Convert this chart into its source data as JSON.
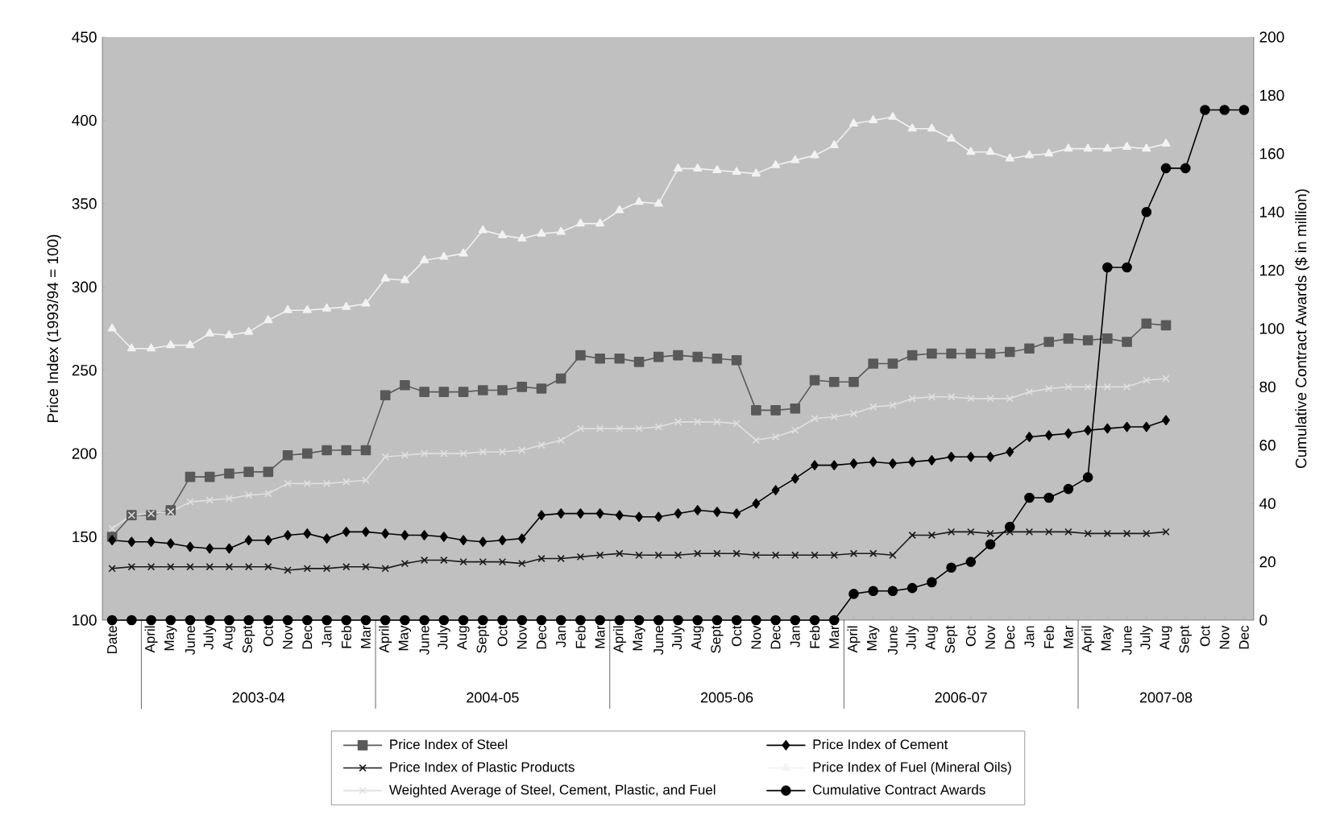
{
  "chart_data": {
    "type": "line",
    "ylabel": "Price Index (1993/94 = 100)",
    "y2label": "Cumulative Contract Awards ($ in million)",
    "categories": [
      "Date",
      null,
      "April",
      "May",
      "June",
      "July",
      "Aug",
      "Sept",
      "Oct",
      "Nov",
      "Dec",
      "Jan",
      "Feb",
      "Mar",
      "April",
      "May",
      "June",
      "July",
      "Aug",
      "Sept",
      "Oct",
      "Nov",
      "Dec",
      "Jan",
      "Feb",
      "Mar",
      "April",
      "May",
      "June",
      "July",
      "Aug",
      "Sept",
      "Oct",
      "Nov",
      "Dec",
      "Jan",
      "Feb",
      "Mar",
      "April",
      "May",
      "June",
      "July",
      "Aug",
      "Sept",
      "Oct",
      "Nov",
      "Dec",
      "Jan",
      "Feb",
      "Mar",
      "April",
      "May",
      "June",
      "July",
      "Aug",
      "Sept",
      "Oct",
      "Nov",
      "Dec"
    ],
    "series": [
      {
        "name": "Price Index of Steel",
        "color": "#595959",
        "marker": "square",
        "values": [
          150,
          163,
          163,
          166,
          186,
          186,
          188,
          189,
          189,
          199,
          200,
          202,
          202,
          202,
          235,
          241,
          237,
          237,
          237,
          238,
          238,
          240,
          239,
          245,
          259,
          257,
          257,
          255,
          258,
          259,
          258,
          257,
          256,
          226,
          226,
          227,
          244,
          243,
          243,
          254,
          254,
          259,
          260,
          260,
          260,
          260,
          261,
          263,
          267,
          269,
          268,
          269,
          267,
          278,
          277,
          null,
          null,
          null,
          null
        ]
      },
      {
        "name": "Price Index of Cement",
        "color": "#000000",
        "marker": "diamond",
        "values": [
          148,
          147,
          147,
          146,
          144,
          143,
          143,
          148,
          148,
          151,
          152,
          149,
          153,
          153,
          152,
          151,
          151,
          150,
          148,
          147,
          148,
          149,
          163,
          164,
          164,
          164,
          163,
          162,
          162,
          164,
          166,
          165,
          164,
          170,
          178,
          185,
          193,
          193,
          194,
          195,
          194,
          195,
          196,
          198,
          198,
          198,
          201,
          210,
          211,
          212,
          214,
          215,
          216,
          216,
          220,
          null,
          null,
          null,
          null
        ]
      },
      {
        "name": "Price Index of Plastic Products",
        "color": "#1a1a1a",
        "marker": "cross",
        "values": [
          131,
          132,
          132,
          132,
          132,
          132,
          132,
          132,
          132,
          130,
          131,
          131,
          132,
          132,
          131,
          134,
          136,
          136,
          135,
          135,
          135,
          134,
          137,
          137,
          138,
          139,
          140,
          139,
          139,
          139,
          140,
          140,
          140,
          139,
          139,
          139,
          139,
          139,
          140,
          140,
          139,
          151,
          151,
          153,
          153,
          152,
          153,
          153,
          153,
          153,
          152,
          152,
          152,
          152,
          153,
          null,
          null,
          null,
          null
        ]
      },
      {
        "name": "Price Index of Fuel (Mineral Oils)",
        "color": "#f2f2f2",
        "marker": "triangle",
        "values": [
          275,
          263,
          263,
          265,
          265,
          272,
          271,
          273,
          280,
          286,
          286,
          287,
          288,
          290,
          305,
          304,
          316,
          318,
          320,
          334,
          331,
          329,
          332,
          333,
          338,
          338,
          346,
          351,
          350,
          371,
          371,
          370,
          369,
          368,
          373,
          376,
          379,
          385,
          398,
          400,
          402,
          395,
          395,
          389,
          381,
          381,
          377,
          379,
          380,
          383,
          383,
          383,
          384,
          383,
          386,
          null,
          null,
          null,
          null
        ]
      },
      {
        "name": "Weighted Average of Steel, Cement, Plastic, and Fuel",
        "color": "#e0e0e0",
        "marker": "cross",
        "values": [
          155,
          163,
          164,
          165,
          171,
          172,
          173,
          175,
          176,
          182,
          182,
          182,
          183,
          184,
          198,
          199,
          200,
          200,
          200,
          201,
          201,
          202,
          205,
          208,
          215,
          215,
          215,
          215,
          216,
          219,
          219,
          219,
          218,
          208,
          210,
          214,
          221,
          222,
          224,
          228,
          229,
          233,
          234,
          234,
          233,
          233,
          233,
          237,
          239,
          240,
          240,
          240,
          240,
          244,
          245,
          null,
          null,
          null,
          null
        ]
      },
      {
        "name": "Cumulative Contract Awards",
        "color": "#000000",
        "marker": "circle",
        "axis": "y2",
        "values": [
          0,
          0,
          0,
          0,
          0,
          0,
          0,
          0,
          0,
          0,
          0,
          0,
          0,
          0,
          0,
          0,
          0,
          0,
          0,
          0,
          0,
          0,
          0,
          0,
          0,
          0,
          0,
          0,
          0,
          0,
          0,
          0,
          0,
          0,
          0,
          0,
          0,
          0,
          9,
          10,
          10,
          11,
          13,
          18,
          20,
          26,
          32,
          42,
          42,
          45,
          49,
          121,
          121,
          140,
          155,
          155,
          175,
          175,
          175
        ]
      }
    ],
    "ylim": [
      100,
      450
    ],
    "yticks": [
      100,
      150,
      200,
      250,
      300,
      350,
      400,
      450
    ],
    "y2lim": [
      0,
      200
    ],
    "y2ticks": [
      0,
      20,
      40,
      60,
      80,
      100,
      120,
      140,
      160,
      180,
      200
    ],
    "annotations": [
      "2003-04",
      "2004-05",
      "2005-06",
      "2006-07",
      "2007-08"
    ],
    "legend": "bottom",
    "grid": false
  }
}
